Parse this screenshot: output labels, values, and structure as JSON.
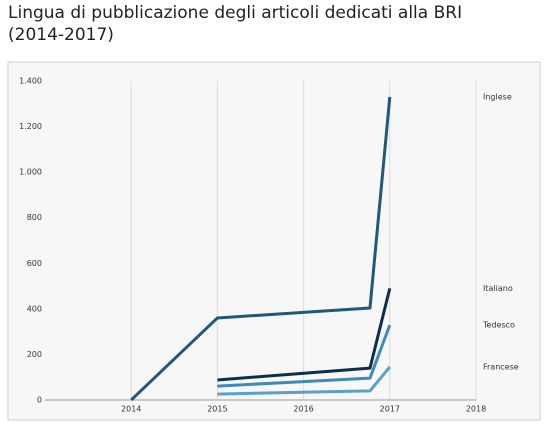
{
  "chart_data": {
    "type": "line",
    "title": "Lingua di pubblicazione degli articoli dedicati alla BRI (2014-2017)",
    "xlim": [
      2013,
      2018
    ],
    "xticks": [
      2014,
      2015,
      2016,
      2017,
      2018
    ],
    "ylim": [
      0,
      1400
    ],
    "yticks": [
      0,
      200,
      400,
      600,
      800,
      {
        "value": 1000,
        "label": "1.000"
      },
      {
        "value": 1200,
        "label": "1.200"
      },
      {
        "value": 1400,
        "label": "1.400"
      }
    ],
    "grid": true,
    "series": [
      {
        "name": "Inglese",
        "color": "#1f5a7a",
        "x": [
          2014,
          2015,
          2016.77,
          2017
        ],
        "values": [
          0,
          360,
          404,
          1330
        ]
      },
      {
        "name": "Italiano",
        "color": "#0d2f4e",
        "x": [
          2015,
          2016.77,
          2017
        ],
        "values": [
          88,
          140,
          490
        ]
      },
      {
        "name": "Tedesco",
        "color": "#3e8ab8",
        "x": [
          2015,
          2016.77,
          2017
        ],
        "values": [
          61,
          96,
          329
        ]
      },
      {
        "name": "Francese",
        "color": "#5a9fd0",
        "x": [
          2015,
          2016.77,
          2017
        ],
        "values": [
          26,
          40,
          145
        ]
      }
    ]
  }
}
